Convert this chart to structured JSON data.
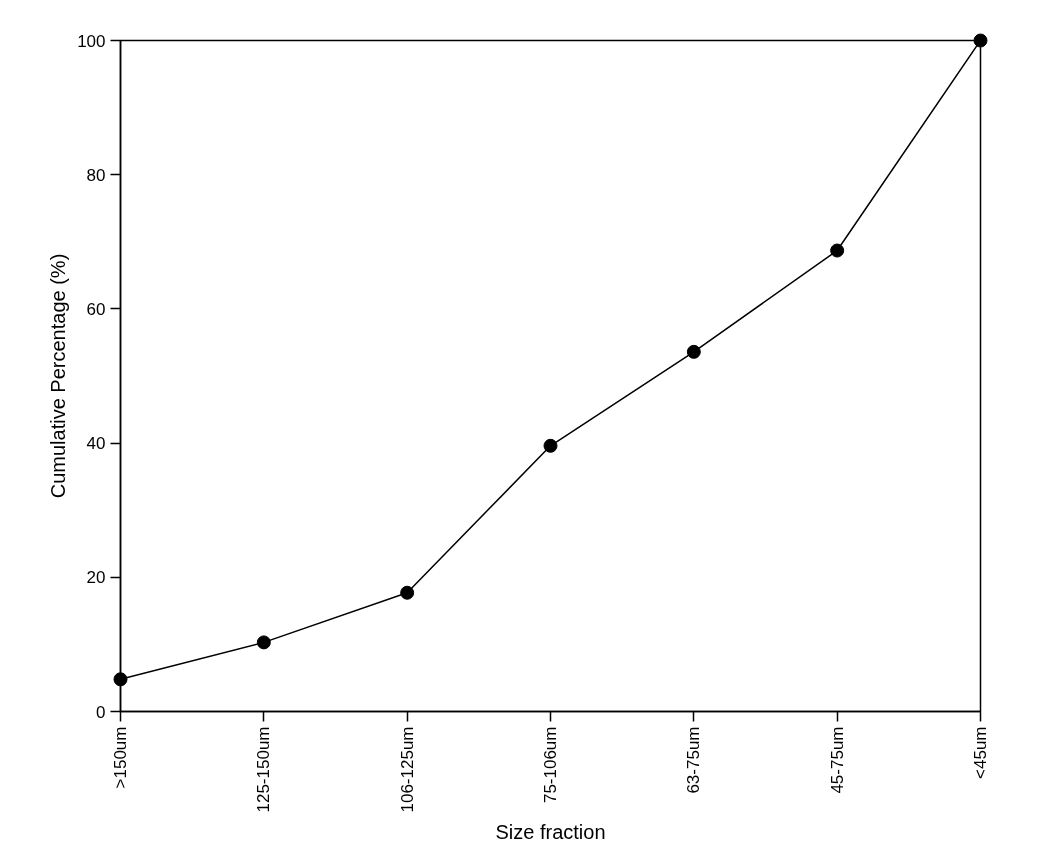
{
  "chart_data": {
    "type": "line",
    "xlabel": "Size fraction",
    "ylabel": "Cumulative Percentage (%)",
    "categories": [
      ">150um",
      "125-150um",
      "106-125um",
      "75-106um",
      "63-75um",
      "45-75um",
      "<45um"
    ],
    "series": [
      {
        "color": "#000000",
        "values": [
          4.8,
          10.3,
          17.7,
          39.6,
          53.6,
          68.7,
          100
        ]
      }
    ],
    "ylim": [
      0,
      100
    ],
    "yticks": [
      0,
      20,
      40,
      60,
      80,
      100
    ],
    "grid": false,
    "marker": "circle",
    "line_style": "solid"
  }
}
